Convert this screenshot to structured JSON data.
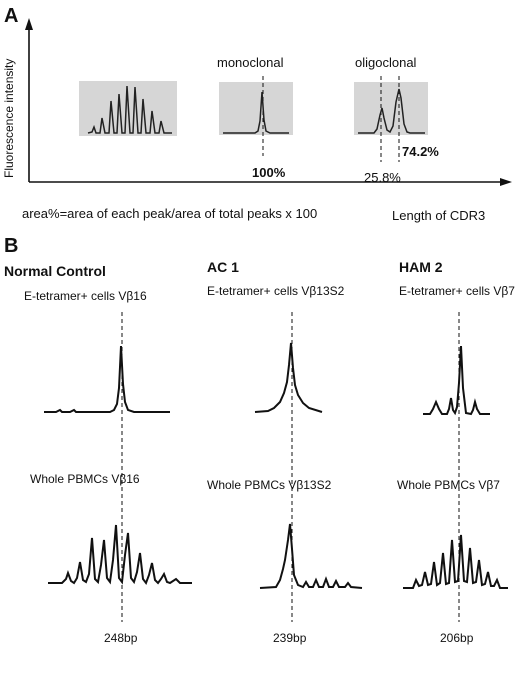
{
  "panel_a": {
    "label": "A",
    "y_axis_label": "Fluorescence intensity",
    "x_axis_label": "Length of CDR3",
    "formula": "area%=area of each peak/area of total peaks x 100",
    "monoclonal": {
      "title": "monoclonal",
      "percent": "100%"
    },
    "oligoclonal": {
      "title": "oligoclonal",
      "percent_major": "74.2%",
      "percent_minor": "25.8%"
    }
  },
  "panel_b": {
    "label": "B",
    "columns": [
      {
        "header": "Normal Control",
        "top_caption": "E-tetramer+  cells Vβ16",
        "bottom_caption": "Whole PBMCs Vβ16",
        "size": "248bp"
      },
      {
        "header": "AC 1",
        "top_caption": "E-tetramer+  cells Vβ13S2",
        "bottom_caption": "Whole PBMCs Vβ13S2",
        "size": "239bp"
      },
      {
        "header": "HAM 2",
        "top_caption": "E-tetramer+  cells Vβ7",
        "bottom_caption": "Whole PBMCs Vβ7",
        "size": "206bp"
      }
    ]
  },
  "colors": {
    "ink": "#111111",
    "panel_fill": "#d6d6d6"
  }
}
